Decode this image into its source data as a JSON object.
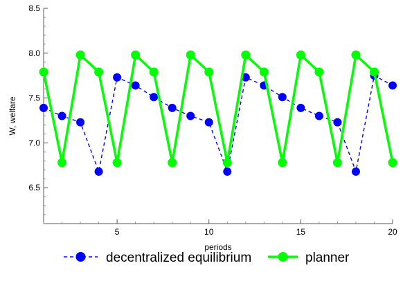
{
  "chart_data": {
    "type": "line",
    "title": "",
    "xlabel": "periods",
    "ylabel": "W, welfare",
    "xlim": [
      1,
      20
    ],
    "ylim": [
      6.1,
      8.5
    ],
    "x_ticks": [
      5,
      10,
      15,
      20
    ],
    "y_ticks": [
      6.5,
      7.0,
      7.5,
      8.0,
      8.5
    ],
    "x_tick_labels": [
      "5",
      "10",
      "15",
      "20"
    ],
    "y_tick_labels": [
      "6.5",
      "7.0",
      "7.5",
      "8.0",
      "8.5"
    ],
    "grid": false,
    "legend_position": "bottom",
    "x": [
      1,
      2,
      3,
      4,
      5,
      6,
      7,
      8,
      9,
      10,
      11,
      12,
      13,
      14,
      15,
      16,
      17,
      18,
      19,
      20
    ],
    "series": [
      {
        "name": "decentralized equilibrium",
        "color": "#0000ff",
        "line_style": "dashed",
        "values": [
          7.39,
          7.3,
          7.23,
          6.68,
          7.73,
          7.64,
          7.51,
          7.39,
          7.3,
          7.23,
          6.68,
          7.73,
          7.64,
          7.51,
          7.39,
          7.3,
          7.23,
          6.68,
          7.75,
          7.64
        ]
      },
      {
        "name": "planner",
        "color": "#00ff00",
        "line_style": "solid",
        "values": [
          7.79,
          6.78,
          7.98,
          7.79,
          6.78,
          7.98,
          7.79,
          6.78,
          7.98,
          7.79,
          6.78,
          7.98,
          7.79,
          6.78,
          7.98,
          7.79,
          6.78,
          7.98,
          7.79,
          6.78
        ]
      }
    ]
  }
}
